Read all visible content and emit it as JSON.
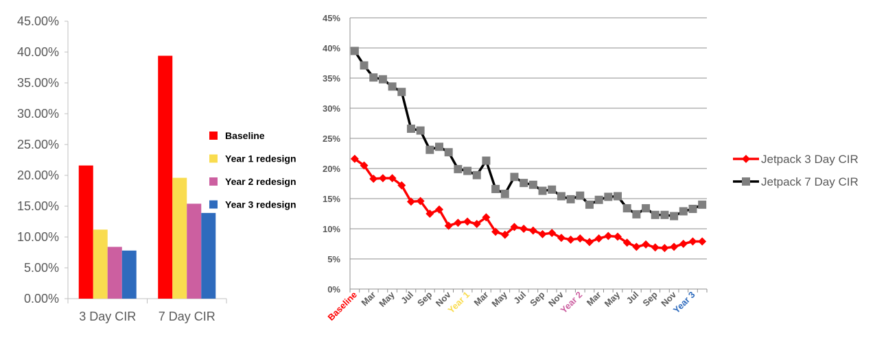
{
  "chart_data": [
    {
      "type": "bar",
      "categories": [
        "3 Day CIR",
        "7 Day CIR"
      ],
      "series": [
        {
          "name": "Baseline",
          "color": "#ff0000",
          "values": [
            21.6,
            39.4
          ]
        },
        {
          "name": "Year 1 redesign",
          "color": "#f9dc4f",
          "values": [
            11.2,
            19.6
          ]
        },
        {
          "name": "Year 2 redesign",
          "color": "#cc5fa0",
          "values": [
            8.4,
            15.4
          ]
        },
        {
          "name": "Year 3 redesign",
          "color": "#2e6bbd",
          "values": [
            7.8,
            13.9
          ]
        }
      ],
      "ylim": [
        0,
        45
      ],
      "yticks": [
        0,
        5,
        10,
        15,
        20,
        25,
        30,
        35,
        40,
        45
      ],
      "ytick_labels": [
        "0.00%",
        "5.00%",
        "10.00%",
        "15.00%",
        "20.00%",
        "25.00%",
        "30.00%",
        "35.00%",
        "40.00%",
        "45.00%"
      ],
      "grid": false,
      "legend_position": "right"
    },
    {
      "type": "line",
      "x_labels": [
        {
          "text": "Baseline",
          "color": "#ff0000"
        },
        {
          "text": "Mar",
          "color": "#595959"
        },
        {
          "text": "May",
          "color": "#595959"
        },
        {
          "text": "Jul",
          "color": "#595959"
        },
        {
          "text": "Sep",
          "color": "#595959"
        },
        {
          "text": "Nov",
          "color": "#595959"
        },
        {
          "text": "Year 1",
          "color": "#f9dc4f"
        },
        {
          "text": "Mar",
          "color": "#595959"
        },
        {
          "text": "May",
          "color": "#595959"
        },
        {
          "text": "Jul",
          "color": "#595959"
        },
        {
          "text": "Sep",
          "color": "#595959"
        },
        {
          "text": "Nov",
          "color": "#595959"
        },
        {
          "text": "Year 2",
          "color": "#cc5fa0"
        },
        {
          "text": "Mar",
          "color": "#595959"
        },
        {
          "text": "May",
          "color": "#595959"
        },
        {
          "text": "Jul",
          "color": "#595959"
        },
        {
          "text": "Sep",
          "color": "#595959"
        },
        {
          "text": "Nov",
          "color": "#595959"
        },
        {
          "text": "Year 3",
          "color": "#2e6bbd"
        }
      ],
      "series": [
        {
          "name": "Jetpack 3 Day CIR",
          "color": "#ff0000",
          "marker": "diamond",
          "values": [
            21.6,
            20.5,
            18.3,
            18.4,
            18.4,
            17.2,
            14.5,
            14.6,
            12.5,
            13.2,
            10.5,
            11.0,
            11.2,
            10.8,
            11.9,
            9.5,
            9.0,
            10.3,
            10.0,
            9.7,
            9.1,
            9.3,
            8.5,
            8.2,
            8.4,
            7.8,
            8.4,
            8.8,
            8.7,
            7.7,
            7.0,
            7.4,
            6.9,
            6.8,
            7.0,
            7.5,
            7.9,
            7.9
          ]
        },
        {
          "name": "Jetpack 7 Day CIR",
          "color": "#000000",
          "marker_color": "#7f7f7f",
          "marker": "square",
          "values": [
            39.5,
            37.1,
            35.1,
            34.8,
            33.6,
            32.7,
            26.6,
            26.3,
            23.1,
            23.6,
            22.7,
            19.9,
            19.6,
            18.9,
            21.3,
            16.6,
            15.8,
            18.6,
            17.6,
            17.3,
            16.3,
            16.5,
            15.4,
            14.9,
            15.5,
            14.0,
            14.8,
            15.3,
            15.4,
            13.4,
            12.4,
            13.4,
            12.3,
            12.3,
            12.1,
            12.9,
            13.3,
            14.0
          ]
        }
      ],
      "ylim": [
        0,
        45
      ],
      "yticks": [
        0,
        5,
        10,
        15,
        20,
        25,
        30,
        35,
        40,
        45
      ],
      "ytick_labels": [
        "0%",
        "5%",
        "10%",
        "15%",
        "20%",
        "25%",
        "30%",
        "35%",
        "40%",
        "45%"
      ],
      "grid": true,
      "legend_position": "right"
    }
  ]
}
